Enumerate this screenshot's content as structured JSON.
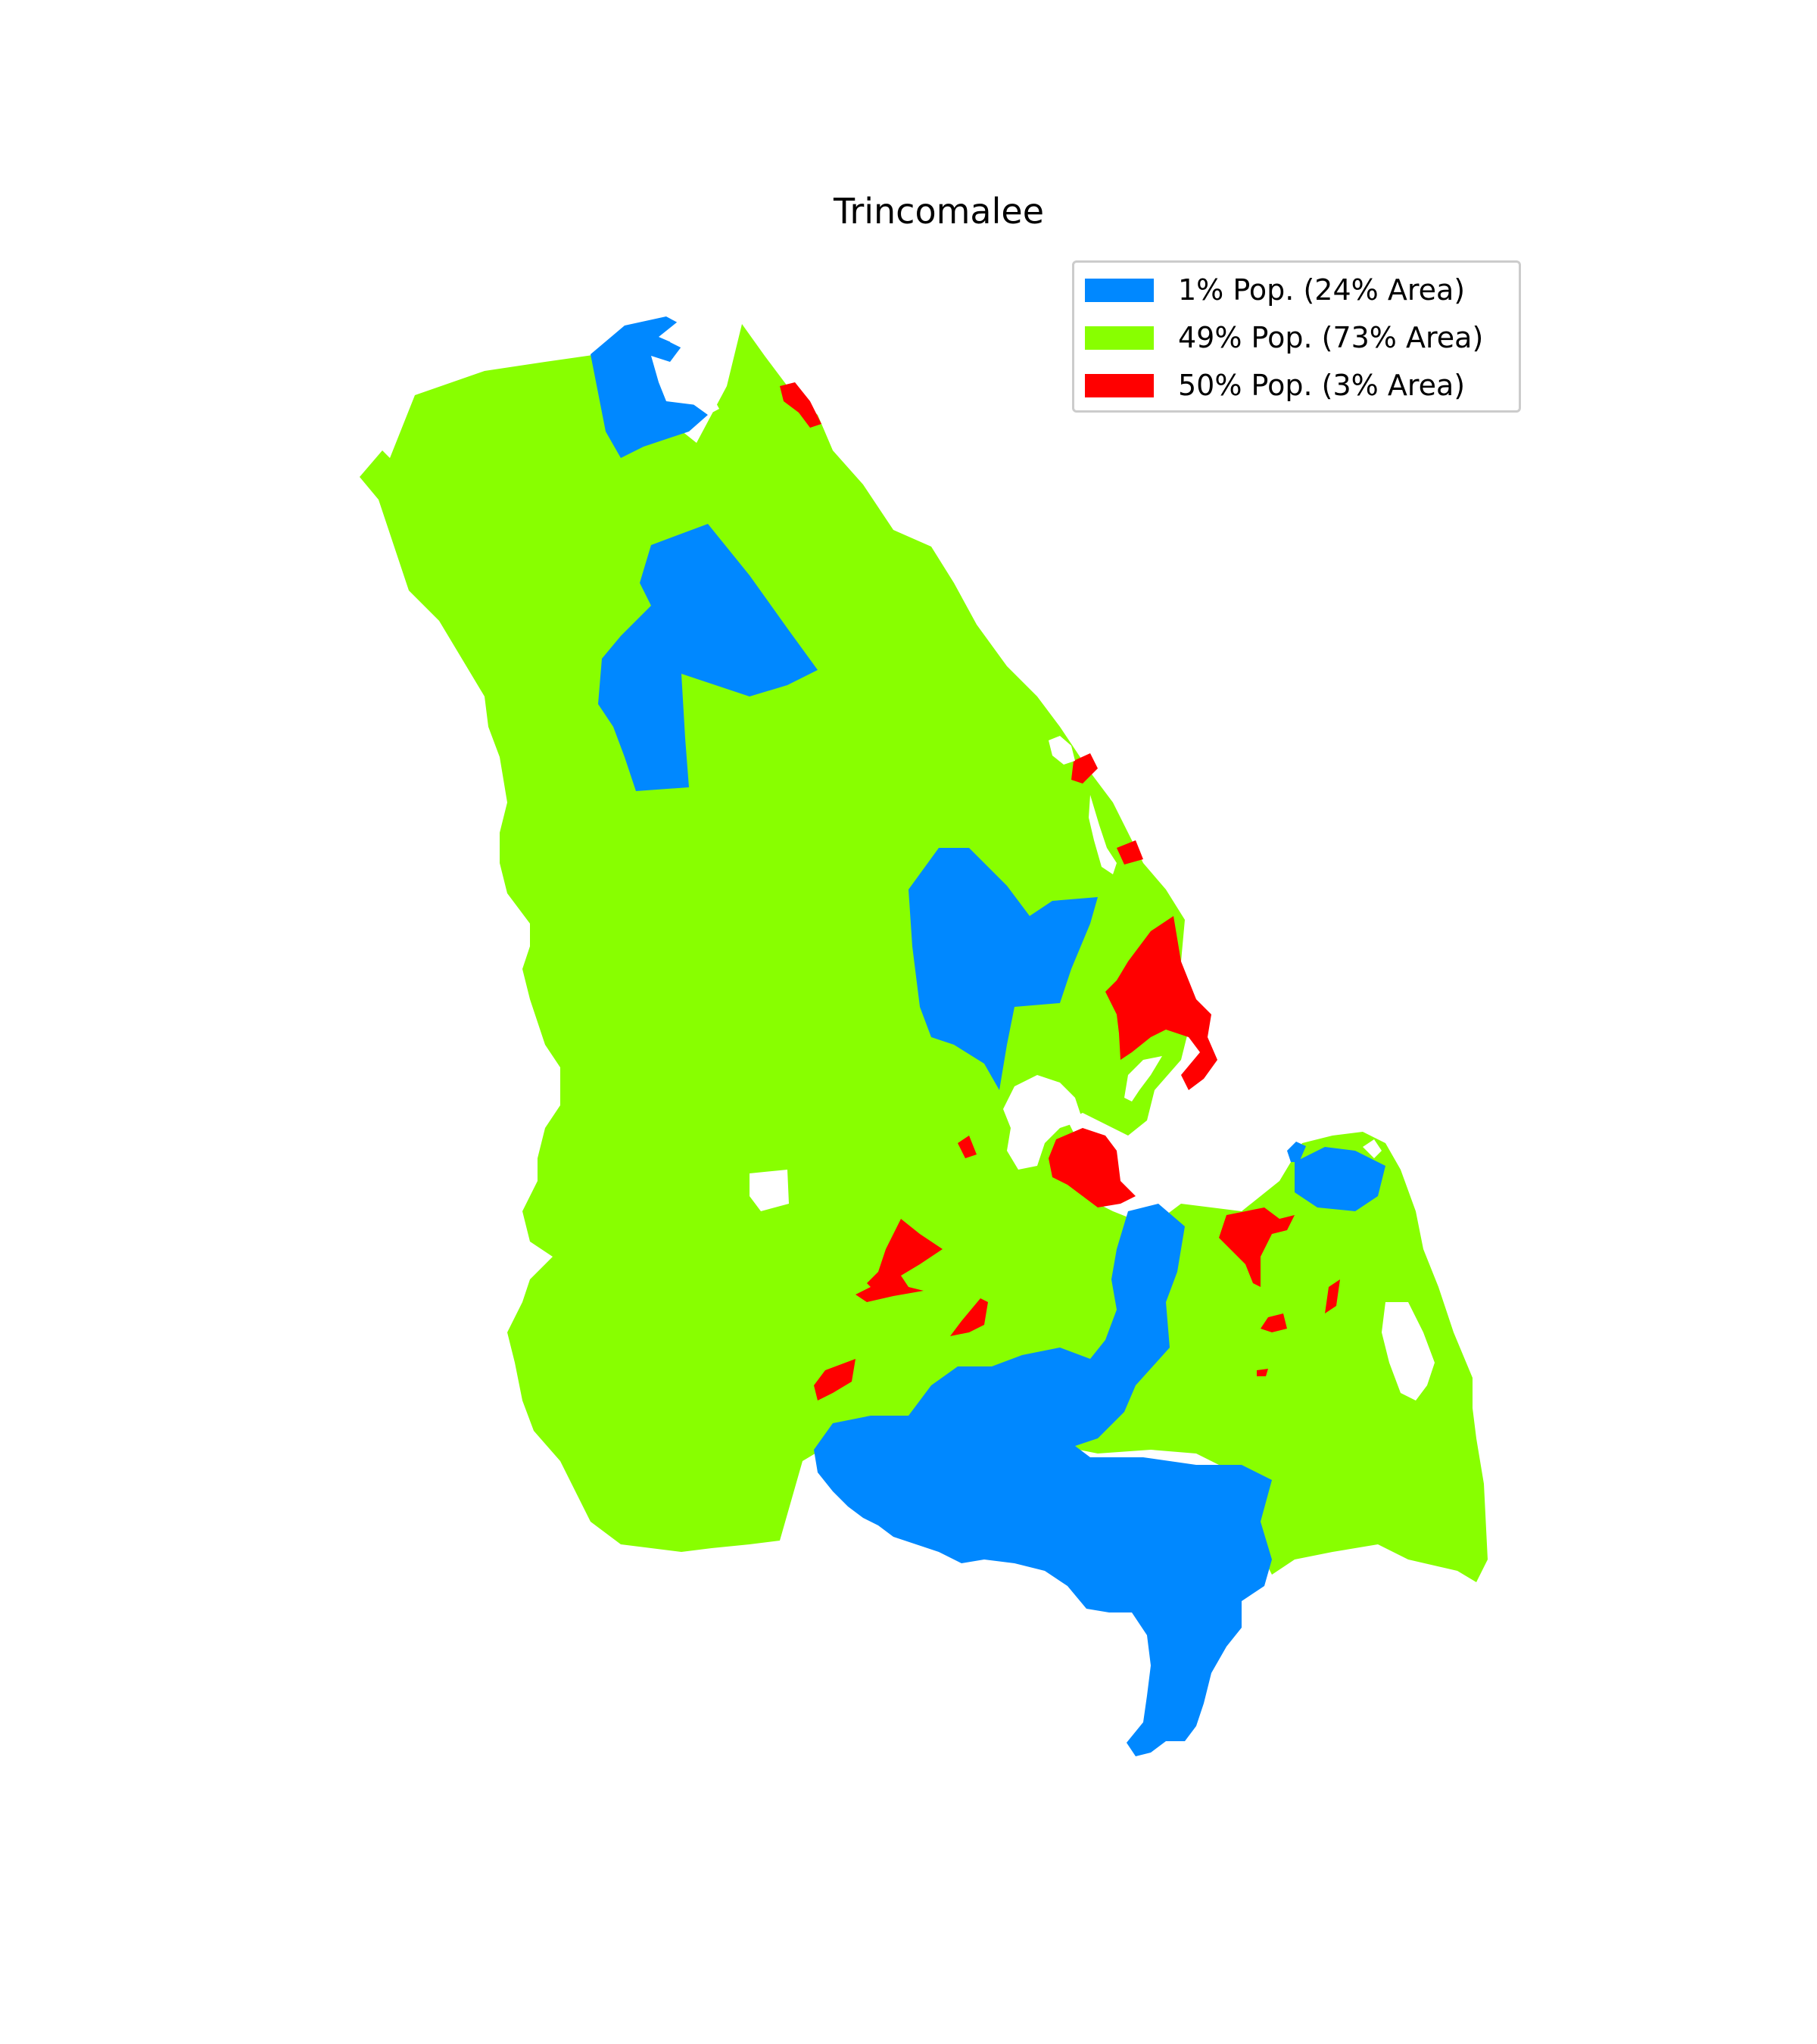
{
  "title": "Trincomalee",
  "legend": {
    "items": [
      {
        "label": "1% Pop. (24% Area)",
        "color": "#0088ff"
      },
      {
        "label": "49% Pop. (73% Area)",
        "color": "#88ff00"
      },
      {
        "label": "50% Pop. (3% Area)",
        "color": "#ff0000"
      }
    ]
  },
  "colors": {
    "low_density": "#0088ff",
    "mid_density": "#88ff00",
    "high_density": "#ff0000",
    "background": "#ffffff"
  }
}
